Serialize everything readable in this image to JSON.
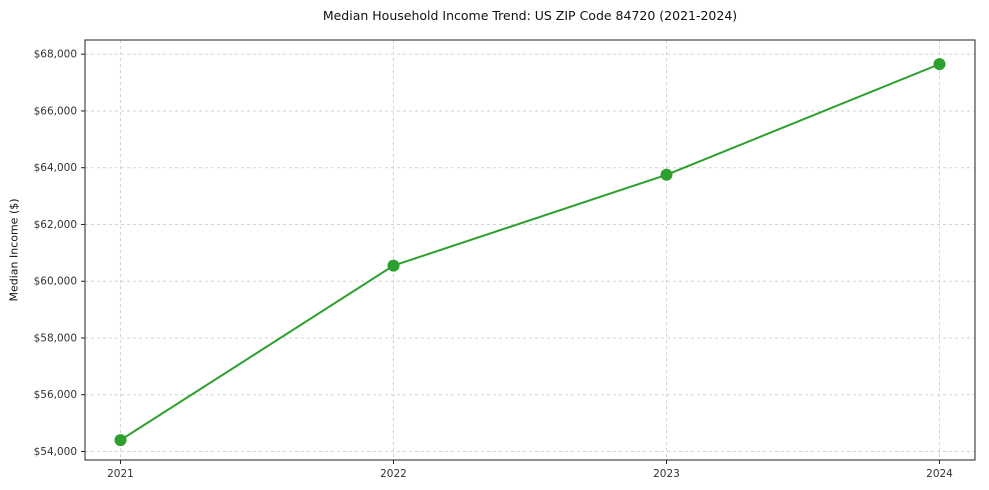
{
  "chart_data": {
    "type": "line",
    "title": "Median Household Income Trend: US ZIP Code 84720 (2021-2024)",
    "xlabel": "",
    "ylabel": "Median Income ($)",
    "x": [
      2021,
      2022,
      2023,
      2024
    ],
    "xtick_labels": [
      "2021",
      "2022",
      "2023",
      "2024"
    ],
    "values": [
      54400,
      60550,
      63750,
      67650
    ],
    "yticks": [
      54000,
      56000,
      58000,
      60000,
      62000,
      64000,
      66000,
      68000
    ],
    "ytick_labels": [
      "$54,000",
      "$56,000",
      "$58,000",
      "$60,000",
      "$62,000",
      "$64,000",
      "$66,000",
      "$68,000"
    ],
    "xlim": [
      2020.87,
      2024.13
    ],
    "ylim": [
      53700,
      68500
    ],
    "grid": true,
    "legend": "none",
    "line_color": "#2ca02c",
    "marker_color": "#2ca02c",
    "grid_color": "#d2d2d2",
    "axis_color": "#222222",
    "tick_label_color": "#333333"
  }
}
